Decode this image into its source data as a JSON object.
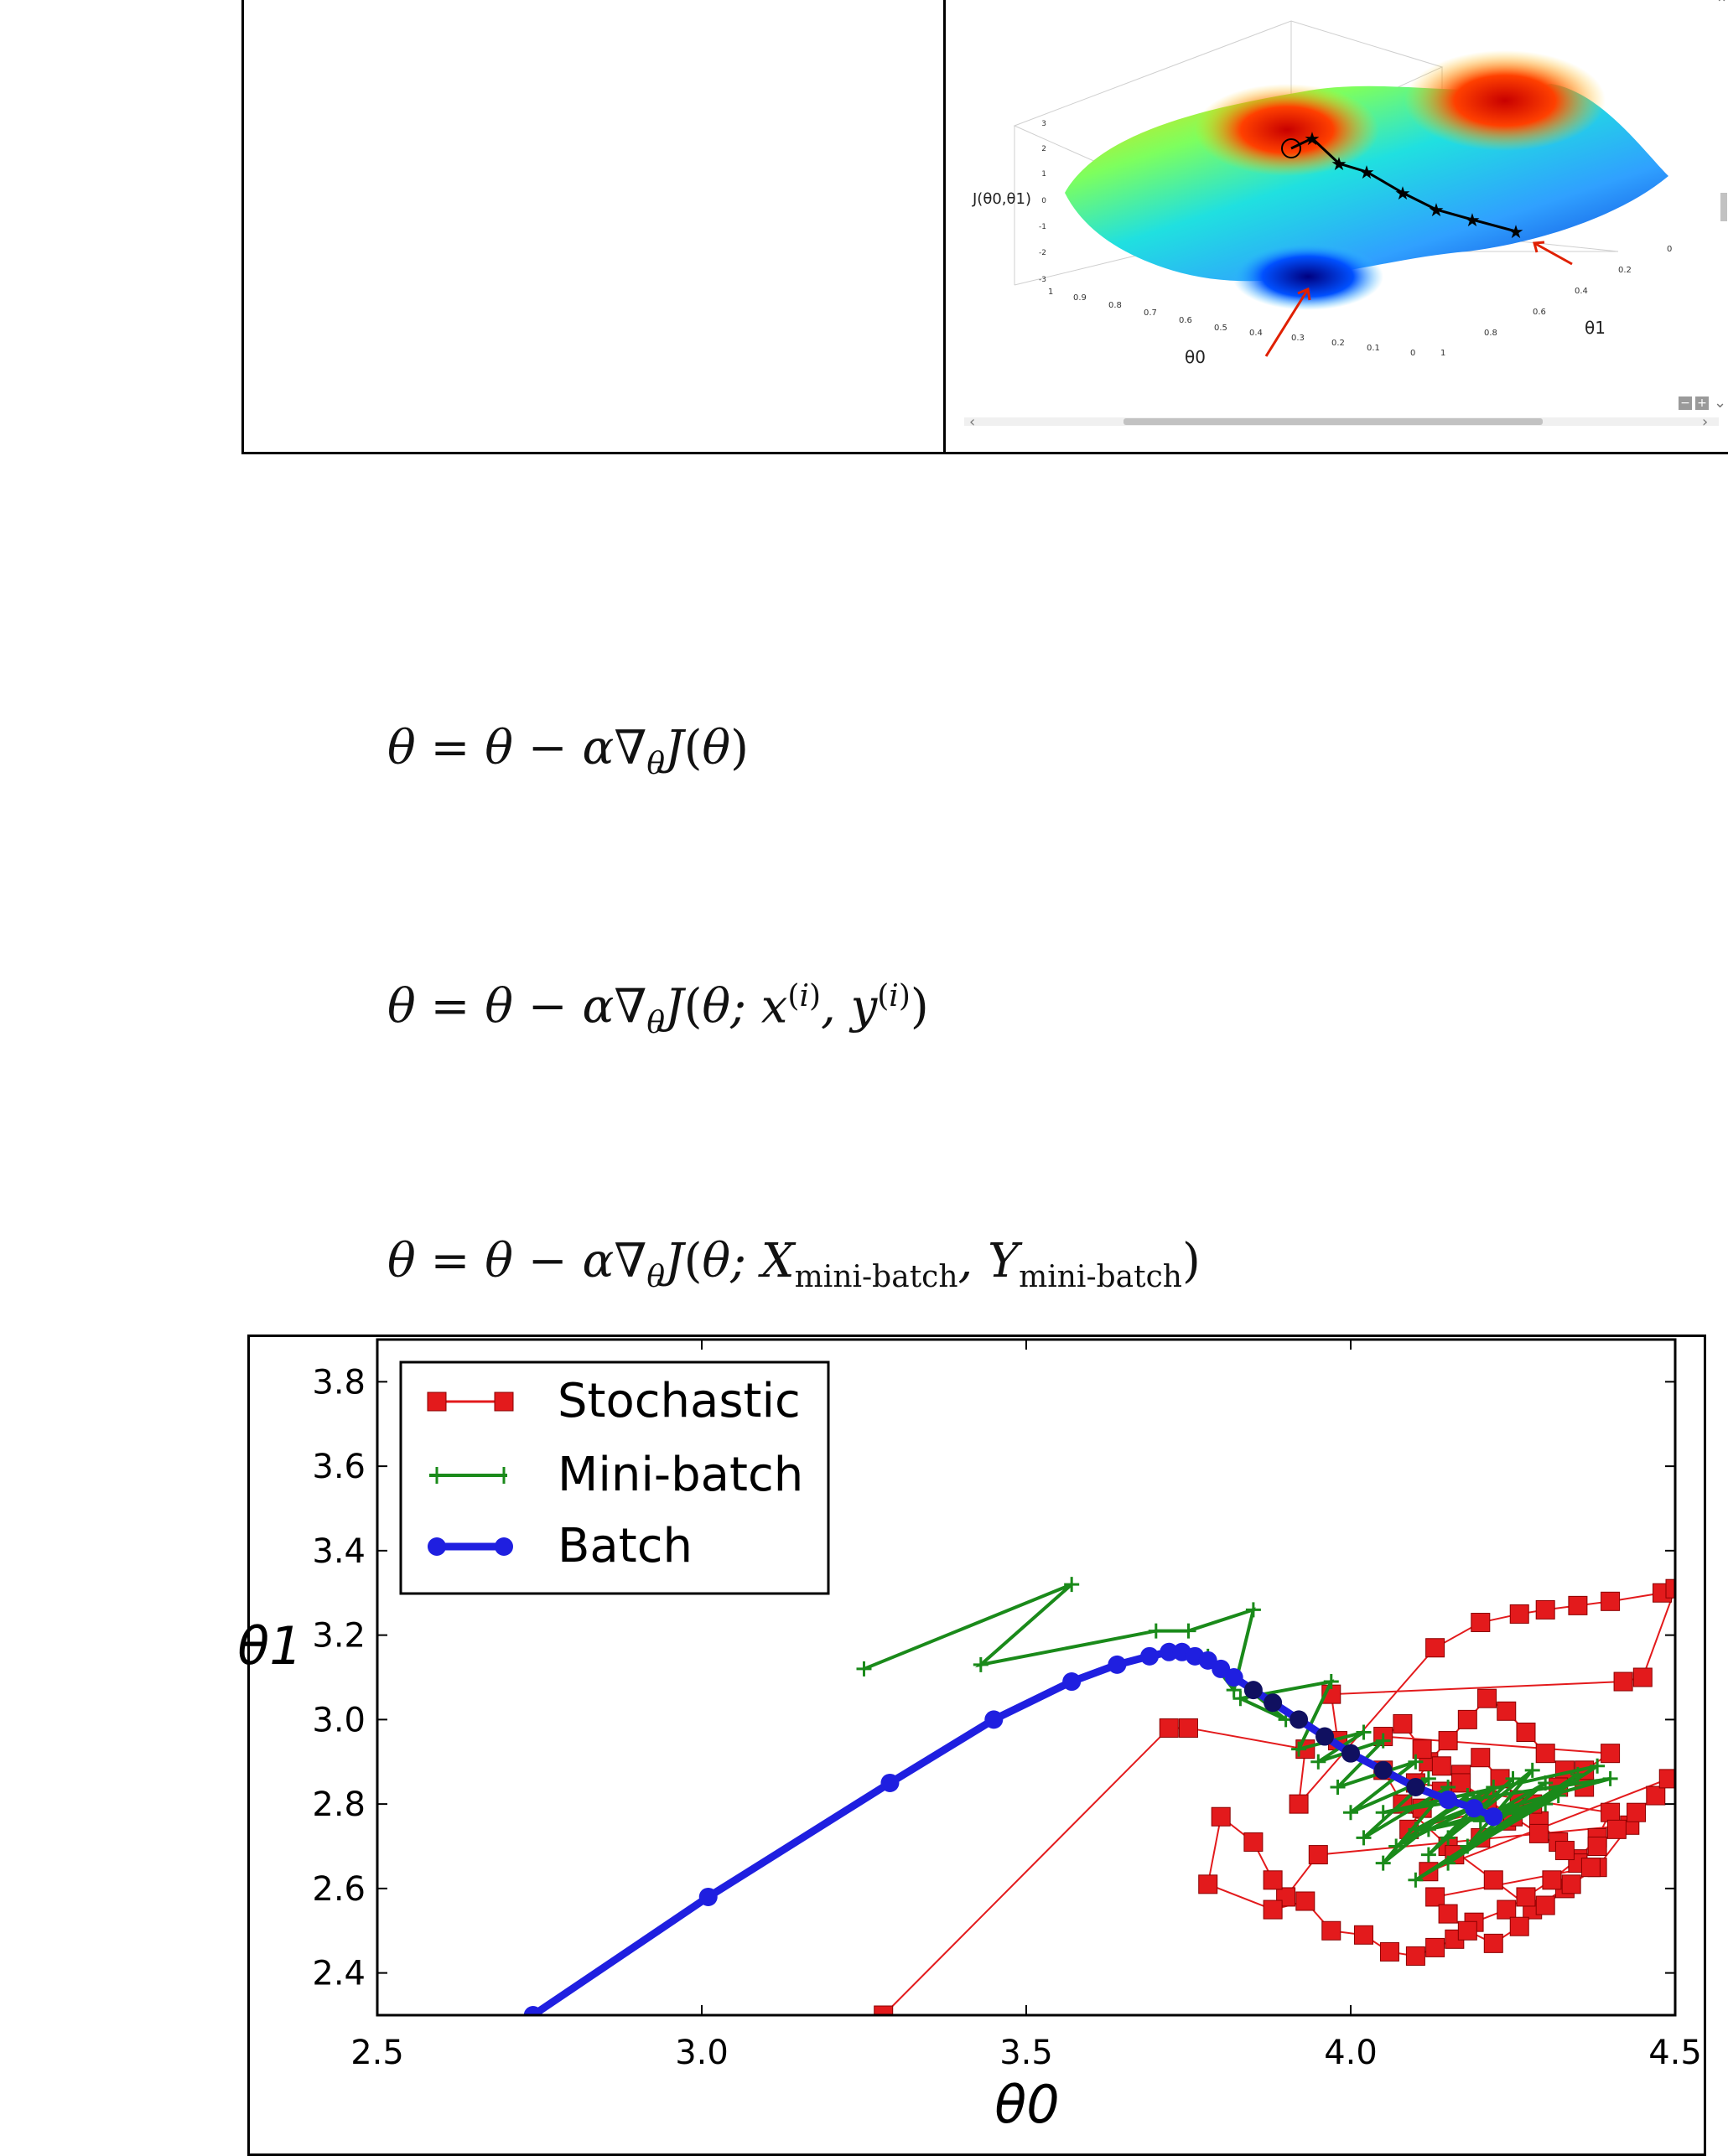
{
  "table_top": {
    "surface_plot": {
      "zlabel": "J(θ0,θ1)",
      "xlabel": "θ0",
      "ylabel": "θ1",
      "z_ticks": [
        "3",
        "2",
        "1",
        "0",
        "-1",
        "-2",
        "-3"
      ],
      "x_ticks": [
        "1",
        "0.9",
        "0.8",
        "0.7",
        "0.6",
        "0.5",
        "0.4",
        "0.3",
        "0.2",
        "0.1",
        "0"
      ],
      "y_ticks": [
        "0",
        "0.2",
        "0.4",
        "0.6",
        "0.8",
        "1"
      ]
    }
  },
  "equations": {
    "batch": "θ = θ − α∇θJ(θ)",
    "stochastic": "θ = θ − α∇θJ(θ; x(i), y(i))",
    "mini_batch": "θ = θ − α∇θJ(θ; Xmini-batch, Ymini-batch)"
  },
  "chart_data": {
    "type": "line",
    "xlabel": "θ0",
    "ylabel": "θ1",
    "xlim": [
      2.5,
      4.5
    ],
    "ylim": [
      2.3,
      3.9
    ],
    "x_ticks": [
      "2.5",
      "3.0",
      "3.5",
      "4.0",
      "4.5"
    ],
    "y_ticks": [
      "2.4",
      "2.6",
      "2.8",
      "3.0",
      "3.2",
      "3.4",
      "3.6",
      "3.8"
    ],
    "legend_position": "top-left",
    "series": [
      {
        "name": "Stochastic",
        "color": "#e31a1c",
        "marker": "square",
        "x": [
          3.28,
          3.72,
          3.75,
          3.93,
          3.92,
          4.13,
          4.2,
          4.26,
          4.3,
          4.35,
          4.4,
          4.48,
          4.5,
          4.45,
          4.42,
          3.97,
          3.98,
          4.05,
          4.08,
          4.15,
          4.22,
          4.28,
          4.33,
          4.38,
          4.43,
          3.95,
          3.9,
          3.88,
          3.85,
          3.8,
          3.78,
          3.88,
          3.93,
          3.97,
          4.02,
          4.06,
          4.1,
          4.13,
          4.16,
          4.19,
          4.24,
          4.27,
          4.31,
          4.35,
          4.38,
          4.4,
          4.1,
          4.12,
          4.15,
          4.18,
          4.21,
          4.24,
          4.27,
          4.3,
          4.33,
          4.36,
          4.09,
          4.11,
          4.14,
          4.17,
          4.2,
          4.23,
          4.26,
          4.29,
          4.32,
          4.35,
          4.38,
          4.41,
          4.44,
          4.47,
          4.49,
          4.12,
          4.16,
          4.2,
          4.24,
          4.28,
          4.32,
          4.36,
          4.4,
          4.05,
          4.08,
          4.11,
          4.14,
          4.17,
          4.21,
          4.25,
          4.29,
          4.33,
          4.37,
          4.13,
          4.15,
          4.18,
          4.22,
          4.26,
          4.3,
          4.34
        ],
        "y": [
          2.3,
          2.98,
          2.98,
          2.93,
          2.8,
          3.17,
          3.23,
          3.25,
          3.26,
          3.27,
          3.28,
          3.3,
          3.31,
          3.1,
          3.09,
          3.06,
          2.95,
          2.88,
          2.8,
          2.7,
          2.62,
          2.55,
          2.6,
          2.65,
          2.75,
          2.68,
          2.58,
          2.62,
          2.71,
          2.77,
          2.61,
          2.55,
          2.57,
          2.5,
          2.49,
          2.45,
          2.44,
          2.46,
          2.48,
          2.52,
          2.55,
          2.58,
          2.62,
          2.67,
          2.72,
          2.78,
          2.85,
          2.9,
          2.95,
          3.0,
          3.05,
          3.02,
          2.97,
          2.92,
          2.88,
          2.84,
          2.74,
          2.79,
          2.83,
          2.87,
          2.91,
          2.86,
          2.81,
          2.76,
          2.71,
          2.66,
          2.7,
          2.74,
          2.78,
          2.82,
          2.86,
          2.64,
          2.68,
          2.72,
          2.76,
          2.8,
          2.84,
          2.88,
          2.92,
          2.96,
          2.99,
          2.93,
          2.89,
          2.85,
          2.81,
          2.77,
          2.73,
          2.69,
          2.65,
          2.58,
          2.54,
          2.5,
          2.47,
          2.51,
          2.56,
          2.61
        ]
      },
      {
        "name": "Mini-batch",
        "color": "#1a8a1a",
        "marker": "plus",
        "x": [
          3.25,
          3.57,
          3.43,
          3.7,
          3.75,
          3.85,
          3.82,
          3.78,
          3.9,
          3.83,
          3.97,
          3.92,
          4.02,
          3.95,
          4.05,
          3.98,
          4.1,
          4.0,
          4.12,
          4.02,
          4.15,
          4.05,
          4.18,
          4.07,
          4.2,
          4.1,
          4.22,
          4.12,
          4.25,
          4.15,
          4.28,
          4.18,
          4.3,
          4.2,
          4.32,
          4.1,
          4.35,
          4.15,
          4.38,
          4.05,
          4.4,
          4.12,
          4.3,
          4.2,
          4.25,
          4.22
        ],
        "y": [
          3.12,
          3.32,
          3.13,
          3.21,
          3.21,
          3.26,
          3.07,
          3.15,
          3.0,
          3.05,
          3.09,
          2.93,
          2.97,
          2.9,
          2.95,
          2.84,
          2.9,
          2.78,
          2.86,
          2.72,
          2.84,
          2.66,
          2.82,
          2.7,
          2.8,
          2.74,
          2.84,
          2.68,
          2.86,
          2.72,
          2.88,
          2.7,
          2.85,
          2.76,
          2.82,
          2.62,
          2.87,
          2.66,
          2.89,
          2.78,
          2.86,
          2.74,
          2.8,
          2.76,
          2.79,
          2.77
        ]
      },
      {
        "name": "Batch",
        "color": "#1f1fe0",
        "marker": "circle",
        "x": [
          2.74,
          3.01,
          3.29,
          3.45,
          3.57,
          3.64,
          3.69,
          3.72,
          3.74,
          3.76,
          3.78,
          3.8,
          3.82,
          3.85,
          3.88,
          3.92,
          3.96,
          4.0,
          4.05,
          4.1,
          4.15,
          4.19,
          4.22
        ],
        "y": [
          2.3,
          2.58,
          2.85,
          3.0,
          3.09,
          3.13,
          3.15,
          3.16,
          3.16,
          3.15,
          3.14,
          3.12,
          3.1,
          3.07,
          3.04,
          3.0,
          2.96,
          2.92,
          2.88,
          2.84,
          2.81,
          2.79,
          2.77
        ]
      }
    ]
  }
}
